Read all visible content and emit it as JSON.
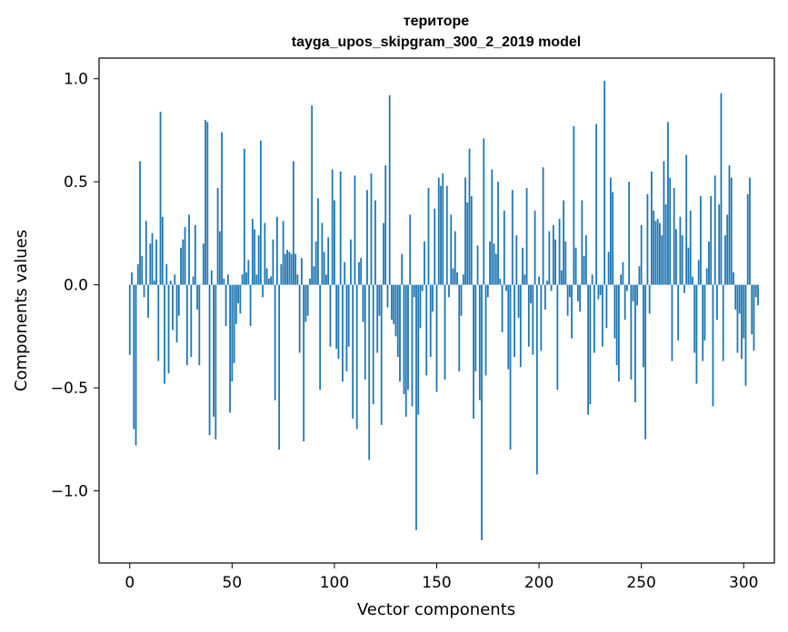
{
  "chart_data": {
    "type": "bar",
    "title_line1": "територе",
    "title_line2": "tayga_upos_skipgram_300_2_2019 model",
    "xlabel": "Vector components",
    "ylabel": "Components values",
    "xlim": [
      -15,
      315
    ],
    "ylim": [
      -1.35,
      1.1
    ],
    "xticks": [
      0,
      50,
      100,
      150,
      200,
      250,
      300
    ],
    "xtick_labels": [
      "0",
      "50",
      "100",
      "150",
      "200",
      "250",
      "300"
    ],
    "yticks": [
      -1.0,
      -0.5,
      0.0,
      0.5,
      1.0
    ],
    "ytick_labels": [
      "−1.0",
      "−0.5",
      "0.0",
      "0.5",
      "1.0"
    ],
    "bar_color": "#1f77b4",
    "grid": false,
    "values": [
      -0.34,
      0.06,
      -0.7,
      -0.78,
      0.1,
      0.6,
      0.14,
      -0.06,
      0.31,
      -0.16,
      0.2,
      0.25,
      0.02,
      0.22,
      -0.37,
      0.84,
      0.33,
      -0.48,
      0.1,
      -0.43,
      0.02,
      -0.22,
      0.05,
      -0.28,
      -0.15,
      0.18,
      0.22,
      0.28,
      -0.39,
      0.34,
      -0.35,
      0.04,
      0.29,
      -0.12,
      -0.39,
      0.0,
      0.2,
      0.8,
      0.79,
      -0.73,
      0.07,
      -0.64,
      -0.75,
      0.47,
      0.26,
      0.74,
      0.03,
      -0.2,
      0.05,
      -0.62,
      -0.47,
      -0.38,
      -0.19,
      -0.09,
      -0.14,
      0.05,
      0.66,
      0.06,
      0.12,
      -0.2,
      0.32,
      0.27,
      0.05,
      0.24,
      0.7,
      -0.06,
      0.3,
      0.08,
      0.03,
      0.04,
      0.22,
      -0.56,
      0.33,
      -0.8,
      0.1,
      0.31,
      0.15,
      0.17,
      0.16,
      0.15,
      0.6,
      0.15,
      0.05,
      -0.33,
      0.13,
      -0.76,
      -0.18,
      -0.15,
      0.03,
      0.87,
      0.09,
      0.21,
      0.42,
      -0.51,
      0.3,
      0.16,
      0.05,
      0.23,
      -0.3,
      0.56,
      0.41,
      -0.31,
      -0.36,
      0.55,
      -0.47,
      0.11,
      -0.42,
      -0.3,
      0.22,
      -0.65,
      0.53,
      -0.7,
      0.11,
      0.13,
      -0.18,
      -0.46,
      0.46,
      -0.85,
      0.54,
      -0.58,
      0.41,
      -0.33,
      -0.15,
      -0.68,
      0.3,
      0.58,
      -0.11,
      0.92,
      -0.17,
      -0.19,
      -0.25,
      -0.35,
      -0.47,
      0.15,
      -0.53,
      -0.64,
      -0.51,
      0.34,
      -0.59,
      -0.06,
      -1.19,
      -0.63,
      -0.21,
      -0.03,
      0.21,
      -0.44,
      0.47,
      -0.35,
      -0.13,
      0.37,
      -0.52,
      0.52,
      0.48,
      0.54,
      -0.46,
      0.48,
      -0.06,
      0.34,
      0.08,
      0.26,
      0.06,
      -0.42,
      -0.15,
      0.05,
      0.52,
      0.4,
      0.66,
      0.43,
      -0.65,
      -0.42,
      0.19,
      -0.56,
      -1.24,
      0.71,
      -0.44,
      -0.06,
      0.21,
      0.56,
      0.2,
      0.15,
      0.5,
      0.03,
      -0.23,
      0.36,
      -0.03,
      -0.41,
      -0.8,
      0.46,
      -0.35,
      0.24,
      -0.16,
      -0.4,
      0.18,
      0.05,
      0.47,
      -0.3,
      -0.09,
      -0.34,
      0.36,
      -0.92,
      0.04,
      -0.32,
      0.57,
      -0.12,
      0.02,
      0.26,
      -0.03,
      0.29,
      0.22,
      -0.51,
      0.32,
      0.07,
      0.41,
      0.21,
      -0.15,
      -0.06,
      -0.26,
      0.77,
      0.18,
      -0.08,
      -0.13,
      0.41,
      0.14,
      0.24,
      -0.63,
      -0.58,
      0.05,
      -0.33,
      0.78,
      -0.07,
      -0.05,
      -0.3,
      0.99,
      -0.21,
      0.16,
      0.52,
      0.45,
      -0.26,
      -0.39,
      -0.47,
      0.05,
      0.11,
      -0.17,
      -0.03,
      0.5,
      -0.46,
      -0.08,
      -0.57,
      -0.1,
      0.09,
      0.29,
      -0.4,
      -0.75,
      0.44,
      -0.14,
      0.55,
      0.36,
      0.31,
      0.32,
      0.3,
      0.24,
      0.6,
      0.39,
      0.79,
      0.52,
      -0.37,
      0.47,
      0.27,
      -0.27,
      0.33,
      0.24,
      -0.04,
      0.63,
      0.18,
      0.36,
      0.04,
      -0.33,
      -0.48,
      0.12,
      0.43,
      -0.37,
      -0.27,
      0.08,
      0.21,
      0.43,
      -0.59,
      0.53,
      -0.17,
      0.39,
      0.93,
      -0.37,
      0.24,
      0.34,
      0.58,
      0.52,
      0.06,
      -0.12,
      -0.33,
      -0.14,
      -0.36,
      -0.26,
      -0.49,
      0.44,
      0.52,
      -0.24,
      -0.32,
      -0.06,
      -0.1
    ]
  }
}
